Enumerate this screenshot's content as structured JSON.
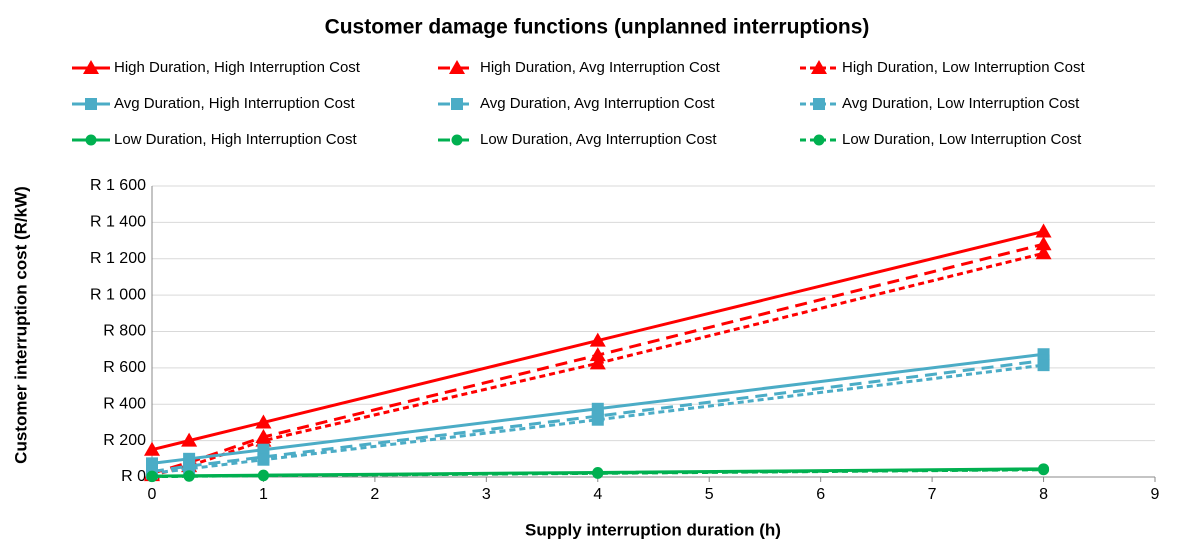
{
  "chart_data": {
    "type": "line",
    "title": "Customer damage functions (unplanned interruptions)",
    "x_label": "Supply interruption duration (h)",
    "y_label": "Customer interruption cost (R/kW)",
    "x": [
      0,
      0.333,
      1,
      4,
      8
    ],
    "xlim": [
      0,
      9
    ],
    "xticks": [
      0,
      1,
      2,
      3,
      4,
      5,
      6,
      7,
      8,
      9
    ],
    "ylim": [
      0,
      1600
    ],
    "yticks": [
      {
        "value": 0,
        "label": "R 0"
      },
      {
        "value": 200,
        "label": "R 200"
      },
      {
        "value": 400,
        "label": "R 400"
      },
      {
        "value": 600,
        "label": "R 600"
      },
      {
        "value": 800,
        "label": "R 800"
      },
      {
        "value": 1000,
        "label": "R 1 000"
      },
      {
        "value": 1200,
        "label": "R 1 200"
      },
      {
        "value": 1400,
        "label": "R 1 400"
      },
      {
        "value": 1600,
        "label": "R 1 600"
      }
    ],
    "grid": true,
    "legend": "top",
    "series": [
      {
        "name": "High Duration, High Interruption Cost",
        "color": "#ff0000",
        "dash": "solid",
        "marker": "triangle",
        "values": [
          150,
          200,
          300,
          750,
          1350
        ]
      },
      {
        "name": "High Duration, Avg Interruption Cost",
        "color": "#ff0000",
        "dash": "long",
        "marker": "triangle",
        "values": [
          20,
          80,
          220,
          670,
          1280
        ]
      },
      {
        "name": "High Duration, Low Interruption Cost",
        "color": "#ff0000",
        "dash": "short",
        "marker": "triangle",
        "values": [
          10,
          60,
          200,
          625,
          1230
        ]
      },
      {
        "name": "Avg Duration, High Interruption Cost",
        "color": "#4bacc6",
        "dash": "solid",
        "marker": "square",
        "values": [
          75,
          100,
          150,
          375,
          675
        ]
      },
      {
        "name": "Avg Duration, Avg Interruption Cost",
        "color": "#4bacc6",
        "dash": "long",
        "marker": "square",
        "values": [
          30,
          60,
          110,
          335,
          640
        ]
      },
      {
        "name": "Avg Duration, Low Interruption Cost",
        "color": "#4bacc6",
        "dash": "short",
        "marker": "square",
        "values": [
          20,
          45,
          95,
          315,
          615
        ]
      },
      {
        "name": "Low Duration, High Interruption Cost",
        "color": "#00b050",
        "dash": "solid",
        "marker": "circle",
        "values": [
          5,
          7,
          10,
          25,
          45
        ]
      },
      {
        "name": "Low Duration, Avg Interruption Cost",
        "color": "#00b050",
        "dash": "long",
        "marker": "circle",
        "values": [
          3,
          5,
          8,
          22,
          42
        ]
      },
      {
        "name": "Low Duration, Low Interruption Cost",
        "color": "#00b050",
        "dash": "short",
        "marker": "circle",
        "values": [
          2,
          4,
          7,
          20,
          40
        ]
      }
    ]
  }
}
